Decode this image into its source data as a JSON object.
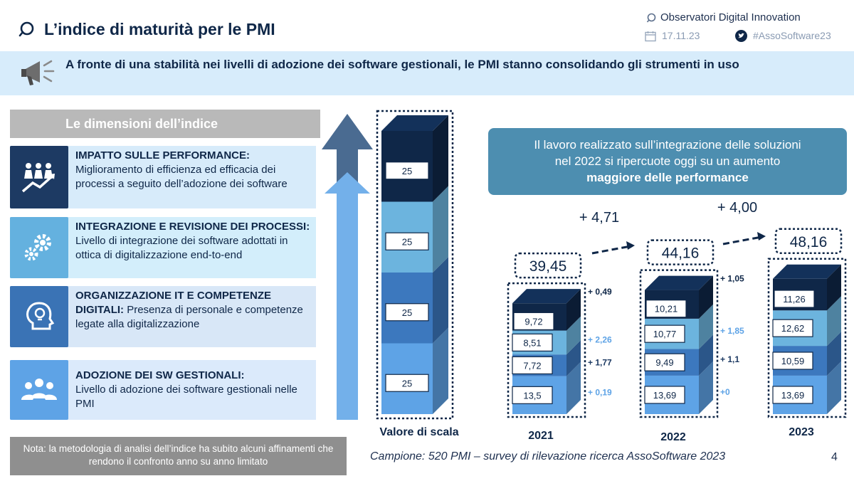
{
  "header": {
    "title": "L’indice di maturità per le PMI",
    "org": "Observatori Digital Innovation",
    "date": "17.11.23",
    "hashtag": "#AssoSoftware23"
  },
  "banner": {
    "text": "A fronte di una stabilità nei livelli di adozione dei software gestionali, le PMI stanno consolidando gli strumenti in uso"
  },
  "dimensions": {
    "header": "Le dimensioni dell’indice",
    "items": [
      {
        "title": "IMPATTO SULLE PERFORMANCE:",
        "desc": "Miglioramento di efficienza ed efficacia dei processi a seguito dell’adozione dei software"
      },
      {
        "title": "INTEGRAZIONE E REVISIONE DEI PROCESSI:",
        "desc": "Livello di integrazione dei software adottati in ottica di digitalizzazione end-to-end"
      },
      {
        "title": "ORGANIZZAZIONE IT E COMPETENZE DIGITALI:",
        "desc": "Presenza di personale e competenze legate alla digitalizzazione"
      },
      {
        "title": "ADOZIONE DEI SW GESTIONALI:",
        "desc": "Livello di adozione dei software gestionali nelle PMI"
      }
    ]
  },
  "note": "Nota: la metodologia di analisi dell’indice ha subito alcuni affinamenti che rendono il confronto anno su anno limitato",
  "campione": "Campione: 520 PMI – survey di rilevazione ricerca AssoSoftware 2023",
  "page_number": "4",
  "callout": {
    "line1": "Il lavoro realizzato sull’integrazione delle soluzioni",
    "line2": "nel 2022 si ripercuote oggi su un aumento",
    "line3": "maggiore delle performance"
  },
  "chart_data": {
    "type": "bar",
    "stacked": true,
    "scale": {
      "label": "Valore di scala",
      "segments": [
        "25",
        "25",
        "25",
        "25"
      ]
    },
    "categories": [
      "2021",
      "2022",
      "2023"
    ],
    "totals": [
      "39,45",
      "44,16",
      "48,16"
    ],
    "year_deltas": [
      "+ 4,71",
      "+ 4,00"
    ],
    "series": [
      {
        "name": "Adozione dei SW gestionali",
        "values": [
          13.5,
          13.69,
          13.69
        ],
        "labels": [
          "13,5",
          "13,69",
          "13,69"
        ]
      },
      {
        "name": "Organizzazione IT e competenze digitali",
        "values": [
          7.72,
          9.49,
          10.59
        ],
        "labels": [
          "7,72",
          "9,49",
          "10,59"
        ]
      },
      {
        "name": "Integrazione e revisione dei processi",
        "values": [
          8.51,
          10.77,
          12.62
        ],
        "labels": [
          "8,51",
          "10,77",
          "12,62"
        ]
      },
      {
        "name": "Impatto sulle performance",
        "values": [
          9.72,
          10.21,
          11.26
        ],
        "labels": [
          "9,72",
          "10,21",
          "11,26"
        ]
      }
    ],
    "segment_deltas": [
      {
        "between": [
          "2021",
          "2022"
        ],
        "labels": [
          "+ 0,19",
          "+ 1,77",
          "+ 2,26",
          "+ 0,49"
        ]
      },
      {
        "between": [
          "2022",
          "2023"
        ],
        "labels": [
          "+0",
          "+ 1,1",
          "+ 1,85",
          "+ 1,05"
        ]
      }
    ],
    "colors": [
      "#5ea3e6",
      "#3c78be",
      "#6cb4de",
      "#0f2748"
    ]
  }
}
